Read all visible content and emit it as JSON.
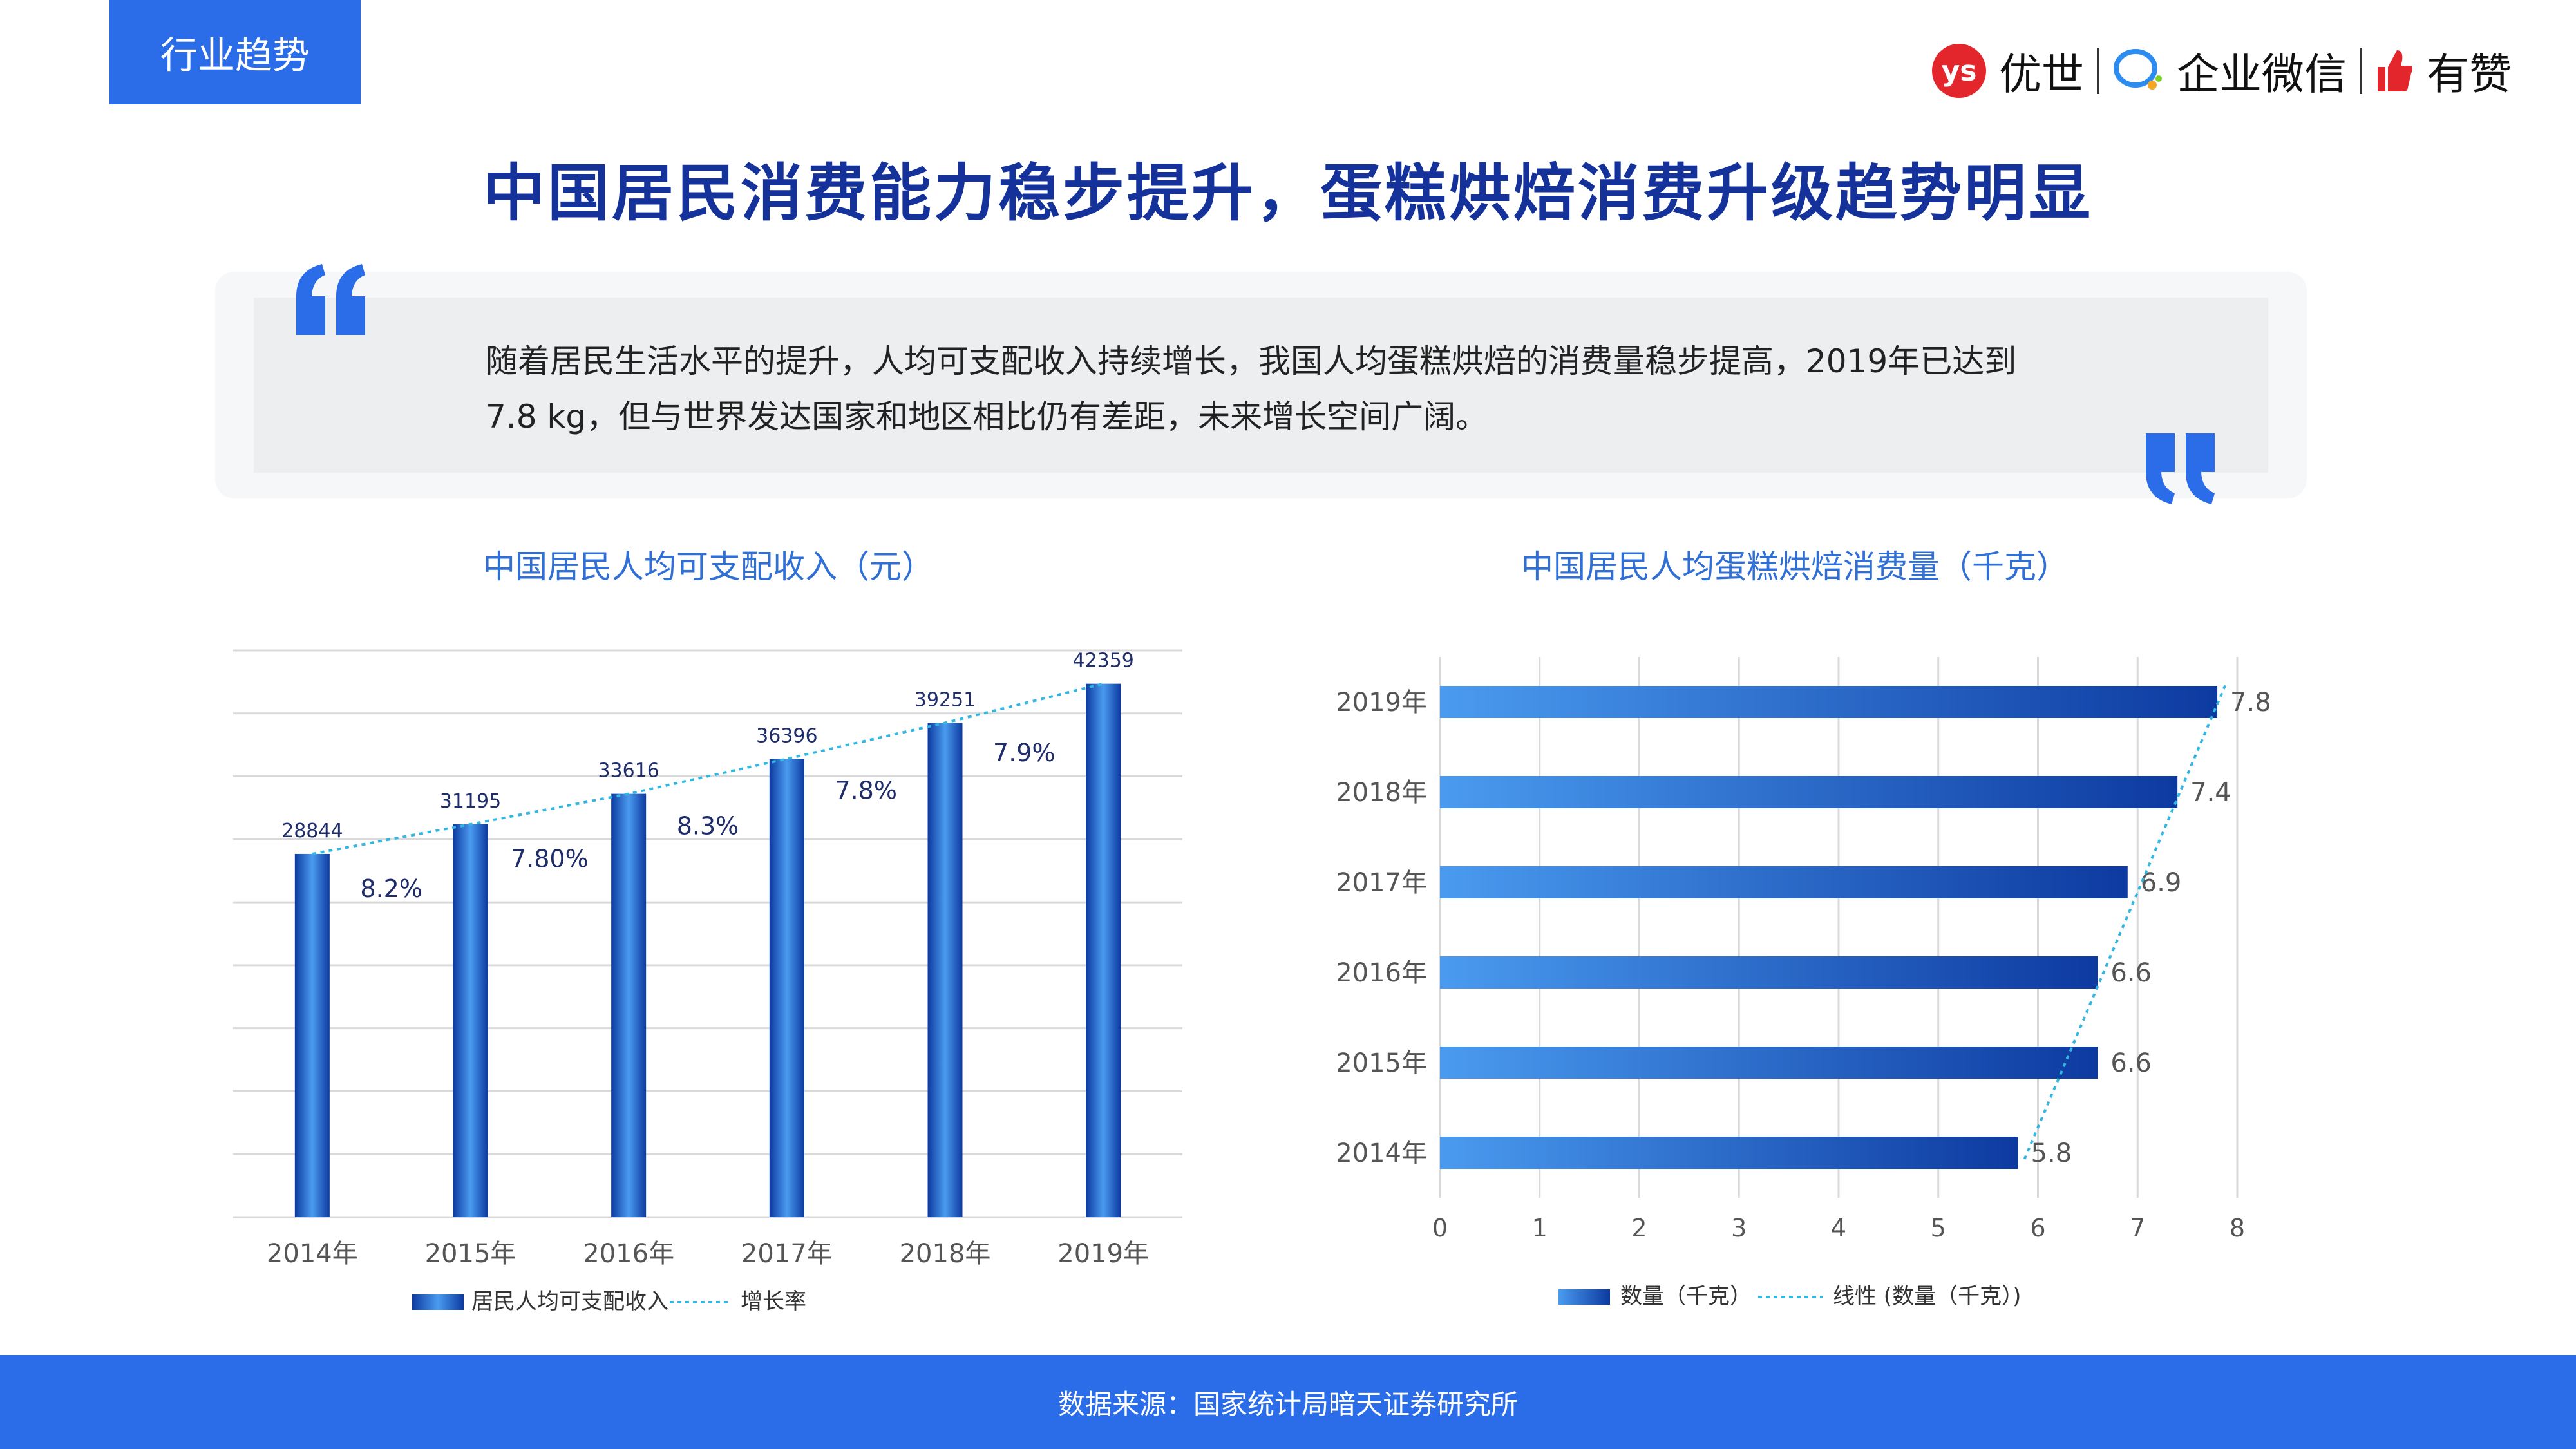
{
  "header": {
    "section_tag": "行业趋势",
    "brand": {
      "logo1_mark": "ys",
      "logo1": "优世",
      "logo2": "企业微信",
      "logo3": "有赞"
    }
  },
  "page_title": "中国居民消费能力稳步提升，蛋糕烘焙消费升级趋势明显",
  "quote": "随着居民生活水平的提升，人均可支配收入持续增长，我国人均蛋糕烘焙的消费量稳步提高，2019年已达到7.8 kg，但与世界发达国家和地区相比仍有差距，未来增长空间广阔。",
  "colors": {
    "accent": "#2b6ce8",
    "title": "#14329a",
    "bar_light": "#4a9bf0",
    "bar_dark": "#0d3aa0",
    "trend": "#33b6e0"
  },
  "chart_data": [
    {
      "type": "bar",
      "title": "中国居民人均可支配收入（元）",
      "categories": [
        "2014年",
        "2015年",
        "2016年",
        "2017年",
        "2018年",
        "2019年"
      ],
      "series": [
        {
          "name": "居民人均可支配收入",
          "values": [
            28844,
            31195,
            33616,
            36396,
            39251,
            42359
          ]
        }
      ],
      "growth_labels": [
        "8.2%",
        "7.80%",
        "8.3%",
        "7.8%",
        "7.9%"
      ],
      "trend_legend": "增长率",
      "ylim": [
        0,
        45000
      ],
      "grid": true,
      "legend": "bottom"
    },
    {
      "type": "bar",
      "orientation": "horizontal",
      "title": "中国居民人均蛋糕烘焙消费量（千克）",
      "categories": [
        "2019年",
        "2018年",
        "2017年",
        "2016年",
        "2015年",
        "2014年"
      ],
      "series": [
        {
          "name": "数量（千克）",
          "values": [
            7.8,
            7.4,
            6.9,
            6.6,
            6.6,
            5.8
          ]
        }
      ],
      "trend_legend": "线性 (数量（千克）)",
      "xlim": [
        0,
        8
      ],
      "xticks": [
        "0",
        "1",
        "2",
        "3",
        "4",
        "5",
        "6",
        "7",
        "8"
      ],
      "grid": true,
      "legend": "bottom"
    }
  ],
  "footer": "数据来源：国家统计局暗天证券研究所"
}
